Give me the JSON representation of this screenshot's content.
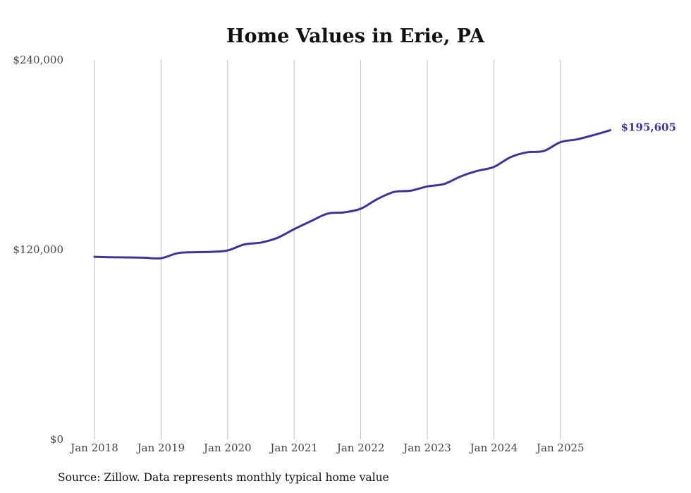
{
  "chart_data": {
    "type": "line",
    "title": "Home Values in Erie, PA",
    "xlabel": "",
    "ylabel": "",
    "ylim": [
      0,
      240000
    ],
    "y_ticks": [
      0,
      120000,
      240000
    ],
    "y_tick_labels": [
      "$0",
      "$120,000",
      "$240,000"
    ],
    "x_tick_labels": [
      "Jan 2018",
      "Jan 2019",
      "Jan 2020",
      "Jan 2021",
      "Jan 2022",
      "Jan 2023",
      "Jan 2024",
      "Jan 2025"
    ],
    "x_range": [
      "2018-01",
      "2025-10"
    ],
    "grid": "vertical at each January",
    "series": [
      {
        "name": "Typical home value",
        "color": "#3d3494",
        "x": [
          2018.0,
          2018.25,
          2018.5,
          2018.75,
          2019.0,
          2019.25,
          2019.5,
          2019.75,
          2020.0,
          2020.25,
          2020.5,
          2020.75,
          2021.0,
          2021.25,
          2021.5,
          2021.75,
          2022.0,
          2022.25,
          2022.5,
          2022.75,
          2023.0,
          2023.25,
          2023.5,
          2023.75,
          2024.0,
          2024.25,
          2024.5,
          2024.75,
          2025.0,
          2025.25,
          2025.5,
          2025.75
        ],
        "values": [
          115500,
          115200,
          115100,
          114900,
          114600,
          117800,
          118400,
          118600,
          119500,
          123300,
          124500,
          127500,
          133000,
          138000,
          142800,
          143600,
          145900,
          152000,
          156500,
          157300,
          160000,
          161500,
          166300,
          169800,
          172300,
          178500,
          181600,
          182400,
          188000,
          189800,
          192500,
          195605
        ]
      }
    ],
    "end_label": "$195,605",
    "source": "Source: Zillow. Data represents monthly typical home value"
  }
}
